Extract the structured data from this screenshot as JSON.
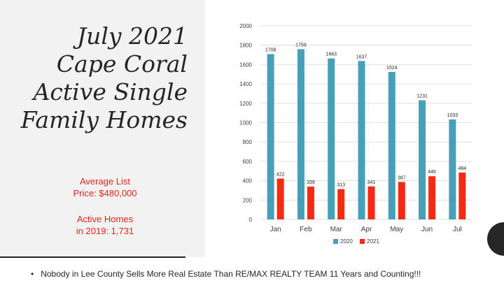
{
  "slide": {
    "title": "July 2021\nCape Coral\nActive Single\nFamily Homes",
    "average_list": "Average List\nPrice: $480,000",
    "active_homes": "Active Homes\nin 2019: 1,731",
    "footer": "Nobody in Lee County Sells More Real Estate Than RE/MAX REALTY  TEAM  11 Years and Counting!!!",
    "bullet": "•"
  },
  "colors": {
    "series_2020": "#48a0b8",
    "series_2021": "#f52a14",
    "text": "#262626",
    "accent": "#e8241a"
  },
  "chart_data": {
    "type": "bar",
    "categories": [
      "Jan",
      "Feb",
      "Mar",
      "Apr",
      "May",
      "Jun",
      "Jul"
    ],
    "series": [
      {
        "name": "2020",
        "values": [
          1708,
          1759,
          1663,
          1637,
          1524,
          1231,
          1033
        ]
      },
      {
        "name": "2021",
        "values": [
          422,
          339,
          313,
          341,
          387,
          446,
          484
        ]
      }
    ],
    "yticks": [
      "0",
      "200",
      "400",
      "600",
      "800",
      "1000",
      "1200",
      "1400",
      "1600",
      "1800",
      "2000"
    ],
    "ylim": [
      0,
      2000
    ],
    "grid": true,
    "legend": "bottom"
  }
}
